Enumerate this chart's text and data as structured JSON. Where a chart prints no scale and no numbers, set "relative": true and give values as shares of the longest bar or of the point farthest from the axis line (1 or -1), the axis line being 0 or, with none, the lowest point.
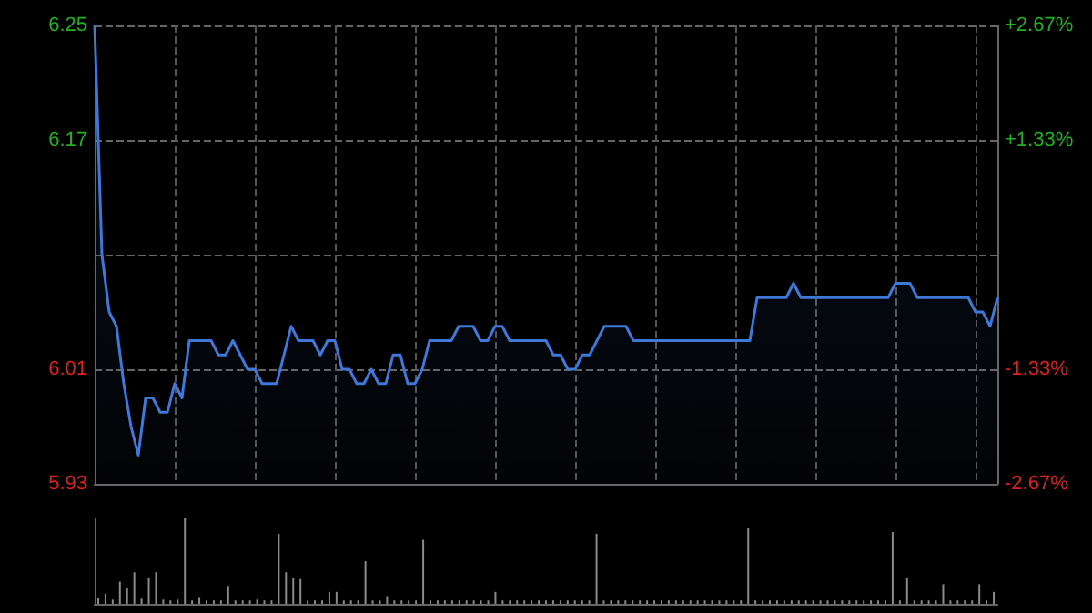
{
  "chart_data": [
    {
      "type": "area",
      "categories": [
        null,
        null,
        null,
        null,
        null,
        null,
        null,
        null,
        null,
        null,
        null,
        null,
        null,
        null,
        null,
        null,
        null,
        null,
        null,
        null,
        null,
        null,
        null,
        null,
        null,
        null,
        null,
        null,
        null,
        null,
        null,
        null,
        null,
        null,
        null,
        null,
        null,
        null,
        null,
        null,
        null,
        null,
        null,
        null,
        null,
        null,
        null,
        null,
        null,
        null,
        null,
        null,
        null,
        null,
        null,
        null,
        null,
        null,
        null,
        null,
        null,
        null,
        null,
        null,
        null,
        null,
        null,
        null,
        null,
        null,
        null,
        null,
        null,
        null,
        null,
        null,
        null,
        null,
        null,
        null,
        null,
        null,
        null,
        null,
        null,
        null,
        null,
        null,
        null,
        null,
        null,
        null,
        null,
        null,
        null,
        null,
        null,
        null,
        null,
        null,
        null,
        null,
        null,
        null,
        null,
        null,
        null,
        null,
        null,
        null,
        null,
        null,
        null,
        null,
        null,
        null,
        null,
        null,
        null,
        null,
        null,
        null,
        null,
        null,
        null
      ],
      "series": [
        {
          "color": "#3f78d8",
          "values": [
            6.25,
            6.09,
            6.05,
            6.04,
            6.0,
            5.97,
            5.95,
            5.99,
            5.99,
            5.98,
            5.98,
            6.0,
            5.99,
            6.03,
            6.03,
            6.03,
            6.03,
            6.02,
            6.02,
            6.03,
            6.02,
            6.01,
            6.01,
            6.0,
            6.0,
            6.0,
            6.02,
            6.04,
            6.03,
            6.03,
            6.03,
            6.02,
            6.03,
            6.03,
            6.01,
            6.01,
            6.0,
            6.0,
            6.01,
            6.0,
            6.0,
            6.02,
            6.02,
            6.0,
            6.0,
            6.01,
            6.03,
            6.03,
            6.03,
            6.03,
            6.04,
            6.04,
            6.04,
            6.03,
            6.03,
            6.04,
            6.04,
            6.03,
            6.03,
            6.03,
            6.03,
            6.03,
            6.03,
            6.02,
            6.02,
            6.01,
            6.01,
            6.02,
            6.02,
            6.03,
            6.04,
            6.04,
            6.04,
            6.04,
            6.03,
            6.03,
            6.03,
            6.03,
            6.03,
            6.03,
            6.03,
            6.03,
            6.03,
            6.03,
            6.03,
            6.03,
            6.03,
            6.03,
            6.03,
            6.03,
            6.03,
            6.06,
            6.06,
            6.06,
            6.06,
            6.06,
            6.07,
            6.06,
            6.06,
            6.06,
            6.06,
            6.06,
            6.06,
            6.06,
            6.06,
            6.06,
            6.06,
            6.06,
            6.06,
            6.06,
            6.07,
            6.07,
            6.07,
            6.06,
            6.06,
            6.06,
            6.06,
            6.06,
            6.06,
            6.06,
            6.06,
            6.05,
            6.05,
            6.04,
            6.06
          ]
        }
      ],
      "ylim": [
        5.93,
        6.25
      ],
      "yticks": [
        5.93,
        6.01,
        {
          "value": 6.09,
          "label": null
        },
        6.17,
        6.25
      ],
      "y2lim": [
        -2.67,
        2.67
      ],
      "y2ticks": [
        {
          "value": -2.67,
          "label": "-2.67%"
        },
        {
          "value": -1.33,
          "label": "-1.33%"
        },
        {
          "value": 0,
          "label": null
        },
        {
          "value": 1.33,
          "label": "+1.33%"
        },
        {
          "value": 2.67,
          "label": "+2.67%"
        }
      ],
      "grid": true,
      "tick_labels": "y"
    },
    {
      "type": "bar",
      "relative": true,
      "categories": [
        null,
        null,
        null,
        null,
        null,
        null,
        null,
        null,
        null,
        null,
        null,
        null,
        null,
        null,
        null,
        null,
        null,
        null,
        null,
        null,
        null,
        null,
        null,
        null,
        null,
        null,
        null,
        null,
        null,
        null,
        null,
        null,
        null,
        null,
        null,
        null,
        null,
        null,
        null,
        null,
        null,
        null,
        null,
        null,
        null,
        null,
        null,
        null,
        null,
        null,
        null,
        null,
        null,
        null,
        null,
        null,
        null,
        null,
        null,
        null,
        null,
        null,
        null,
        null,
        null,
        null,
        null,
        null,
        null,
        null,
        null,
        null,
        null,
        null,
        null,
        null,
        null,
        null,
        null,
        null,
        null,
        null,
        null,
        null,
        null,
        null,
        null,
        null,
        null,
        null,
        null,
        null,
        null,
        null,
        null,
        null,
        null,
        null,
        null,
        null,
        null,
        null,
        null,
        null,
        null,
        null,
        null,
        null,
        null,
        null,
        null,
        null,
        null,
        null,
        null,
        null,
        null,
        null,
        null,
        null,
        null,
        null,
        null,
        null,
        null
      ],
      "series": [
        {
          "color": "#8a8a8a",
          "values": [
            0.07,
            0.12,
            0.05,
            0.26,
            0.18,
            0.37,
            0.06,
            0.31,
            0.37,
            0.05,
            0.04,
            0.05,
            1.0,
            0.04,
            0.08,
            0.04,
            0.04,
            0.04,
            0.21,
            0.04,
            0.04,
            0.04,
            0.05,
            0.04,
            0.04,
            0.82,
            0.37,
            0.31,
            0.29,
            0.04,
            0.04,
            0.04,
            0.14,
            0.14,
            0.04,
            0.04,
            0.04,
            0.5,
            0.04,
            0.04,
            0.09,
            0.04,
            0.04,
            0.04,
            0.04,
            0.75,
            0.04,
            0.04,
            0.04,
            0.04,
            0.04,
            0.04,
            0.04,
            0.04,
            0.04,
            0.14,
            0.04,
            0.04,
            0.04,
            0.04,
            0.04,
            0.04,
            0.04,
            0.04,
            0.04,
            0.04,
            0.04,
            0.04,
            0.04,
            0.82,
            0.04,
            0.04,
            0.04,
            0.04,
            0.04,
            0.04,
            0.04,
            0.04,
            0.04,
            0.04,
            0.04,
            0.04,
            0.04,
            0.04,
            0.04,
            0.04,
            0.04,
            0.04,
            0.04,
            0.04,
            0.89,
            0.04,
            0.04,
            0.04,
            0.04,
            0.04,
            0.04,
            0.04,
            0.04,
            0.04,
            0.04,
            0.04,
            0.04,
            0.04,
            0.04,
            0.04,
            0.04,
            0.04,
            0.04,
            0.04,
            0.84,
            0.04,
            0.31,
            0.04,
            0.04,
            0.04,
            0.04,
            0.23,
            0.04,
            0.04,
            0.04,
            0.04,
            0.23,
            0.04,
            0.14
          ]
        }
      ],
      "tick_labels": false
    }
  ]
}
